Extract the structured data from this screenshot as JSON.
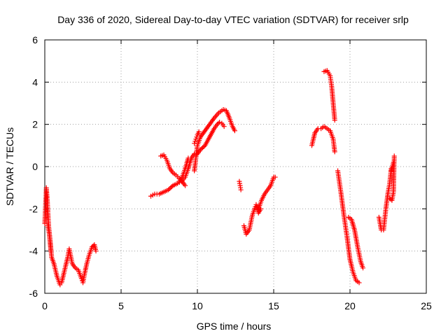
{
  "chart_data": {
    "type": "scatter",
    "title": "Day 336 of 2020, Sidereal Day-to-day VTEC variation (SDTVAR) for receiver srlp",
    "xlabel": "GPS time / hours",
    "ylabel": "SDTVAR / TECUs",
    "xlim": [
      0,
      25
    ],
    "ylim": [
      -6,
      6
    ],
    "xticks": [
      0,
      5,
      10,
      15,
      20,
      25
    ],
    "yticks": [
      -6,
      -4,
      -2,
      0,
      2,
      4,
      6
    ],
    "grid": true,
    "legend": "none",
    "marker": "plus",
    "color": "#ff0000",
    "series": [
      {
        "x": [
          0.0,
          0.1,
          0.15,
          0.25,
          0.35,
          0.45,
          0.6,
          0.8,
          1.0,
          1.1,
          1.3,
          1.5,
          1.6,
          1.8,
          2.0,
          2.2,
          2.4,
          2.5,
          2.6,
          2.75,
          2.9,
          3.1,
          3.25,
          3.35
        ],
        "y": [
          -2.7,
          -1.0,
          -1.4,
          -2.8,
          -3.5,
          -4.3,
          -4.6,
          -5.2,
          -5.6,
          -5.5,
          -4.9,
          -4.3,
          -3.9,
          -4.6,
          -4.8,
          -4.9,
          -5.3,
          -5.5,
          -5.1,
          -4.6,
          -4.2,
          -3.8,
          -3.7,
          -4.0
        ]
      },
      {
        "x": [
          0.2,
          0.3,
          0.4
        ],
        "y": [
          -2.8,
          -3.2,
          -4.0
        ]
      },
      {
        "x": [
          6.95,
          7.2,
          7.5,
          7.8,
          8.1,
          8.4,
          8.7,
          8.95,
          9.2,
          9.4,
          9.6,
          9.8,
          10.0,
          10.2,
          10.5,
          10.8,
          11.1,
          11.3,
          11.45,
          11.6,
          11.75
        ],
        "y": [
          -1.4,
          -1.3,
          -1.3,
          -1.2,
          -1.1,
          -0.9,
          -0.8,
          -0.7,
          -0.5,
          -0.1,
          0.4,
          0.6,
          0.6,
          0.8,
          1.0,
          1.4,
          1.8,
          2.0,
          2.1,
          2.05,
          1.9
        ]
      },
      {
        "x": [
          7.6,
          7.8,
          8.0,
          8.2,
          8.4,
          8.6,
          8.8,
          9.0,
          9.2
        ],
        "y": [
          0.5,
          0.55,
          0.3,
          -0.1,
          -0.3,
          -0.4,
          -0.55,
          -0.7,
          -0.9
        ]
      },
      {
        "x": [
          8.8,
          9.0,
          9.2,
          9.4
        ],
        "y": [
          -0.7,
          -0.5,
          -0.1,
          0.4
        ]
      },
      {
        "x": [
          9.8,
          10.0,
          10.2,
          10.5,
          10.8,
          11.1,
          11.4,
          11.7,
          11.9,
          12.1,
          12.3,
          12.45
        ],
        "y": [
          -0.2,
          1.0,
          1.4,
          1.7,
          2.0,
          2.3,
          2.55,
          2.7,
          2.65,
          2.3,
          1.9,
          1.7
        ]
      },
      {
        "x": [
          9.8,
          9.9,
          10.0,
          10.1
        ],
        "y": [
          1.1,
          1.3,
          1.5,
          1.65
        ]
      },
      {
        "x": [
          12.75,
          12.8,
          12.85
        ],
        "y": [
          -0.7,
          -0.9,
          -1.1
        ]
      },
      {
        "x": [
          13.05,
          13.2,
          13.4,
          13.6,
          13.8,
          14.0,
          14.2,
          14.4,
          14.6,
          14.8,
          15.0,
          15.1
        ],
        "y": [
          -2.8,
          -3.2,
          -3.0,
          -2.3,
          -1.9,
          -2.0,
          -1.6,
          -1.3,
          -1.1,
          -0.9,
          -0.5,
          -0.5
        ]
      },
      {
        "x": [
          13.85,
          14.0,
          14.15
        ],
        "y": [
          -1.8,
          -2.2,
          -2.0
        ]
      },
      {
        "x": [
          17.5,
          17.7,
          17.9,
          18.1,
          18.3,
          18.5,
          18.7,
          18.9,
          19.0
        ],
        "y": [
          1.0,
          1.6,
          1.8,
          1.8,
          1.9,
          1.8,
          1.7,
          1.3,
          0.7
        ]
      },
      {
        "x": [
          18.3,
          18.5,
          18.7,
          18.8,
          18.9,
          19.0
        ],
        "y": [
          4.5,
          4.55,
          4.3,
          3.8,
          3.0,
          2.2
        ]
      },
      {
        "x": [
          19.2,
          19.4,
          19.6,
          19.8,
          20.0,
          20.2,
          20.4,
          20.6
        ],
        "y": [
          -0.2,
          -1.2,
          -2.3,
          -3.3,
          -4.4,
          -5.0,
          -5.4,
          -5.5
        ]
      },
      {
        "x": [
          19.9,
          20.1,
          20.3,
          20.5,
          20.7,
          20.85
        ],
        "y": [
          -2.4,
          -2.5,
          -3.0,
          -3.8,
          -4.5,
          -4.8
        ]
      },
      {
        "x": [
          21.9,
          22.05,
          22.2,
          22.35,
          22.5,
          22.6,
          22.7
        ],
        "y": [
          -2.4,
          -3.0,
          -3.0,
          -2.0,
          -1.2,
          -0.8,
          -0.1
        ]
      },
      {
        "x": [
          22.6,
          22.75,
          22.85,
          22.9
        ],
        "y": [
          -1.5,
          -1.6,
          -1.2,
          0.5
        ]
      },
      {
        "x": [
          22.7,
          22.85
        ],
        "y": [
          -0.2,
          0.2
        ]
      }
    ]
  }
}
